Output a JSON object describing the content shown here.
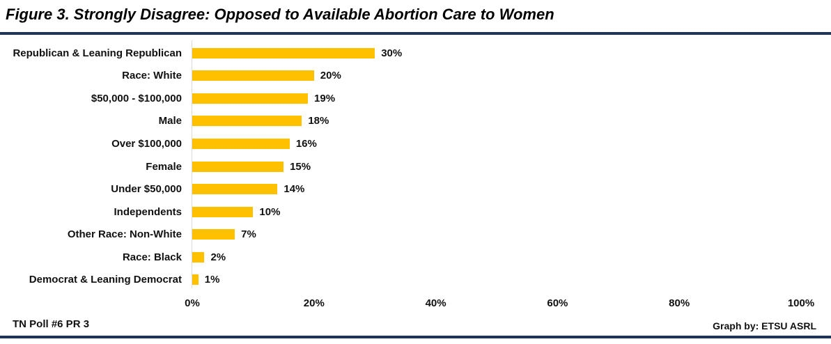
{
  "title": "Figure 3. Strongly Disagree: Opposed to Available Abortion Care to Women",
  "footer": {
    "left": "TN Poll #6 PR 3",
    "right": "Graph by: ETSU ASRL"
  },
  "colors": {
    "bar": "#FFC000",
    "accent_line": "#1F3454",
    "axis_line": "#D9D9D9",
    "text": "#111111"
  },
  "chart_data": {
    "type": "bar",
    "orientation": "horizontal",
    "title": "Figure 3. Strongly Disagree: Opposed to Available Abortion Care to Women",
    "categories": [
      "Republican & Leaning Republican",
      "Race: White",
      "$50,000 - $100,000",
      "Male",
      "Over $100,000",
      "Female",
      "Under $50,000",
      "Independents",
      "Other Race: Non-White",
      "Race: Black",
      "Democrat & Leaning Democrat"
    ],
    "values": [
      30,
      20,
      19,
      18,
      16,
      15,
      14,
      10,
      7,
      2,
      1
    ],
    "value_labels": [
      "30%",
      "20%",
      "19%",
      "18%",
      "16%",
      "15%",
      "14%",
      "10%",
      "7%",
      "2%",
      "1%"
    ],
    "x_ticks": [
      "0%",
      "20%",
      "40%",
      "60%",
      "80%",
      "100%"
    ],
    "x_tick_values": [
      0,
      20,
      40,
      60,
      80,
      100
    ],
    "xlim": [
      0,
      100
    ],
    "xlabel": "",
    "ylabel": "",
    "grid": false,
    "legend": false,
    "data_labels": true
  }
}
